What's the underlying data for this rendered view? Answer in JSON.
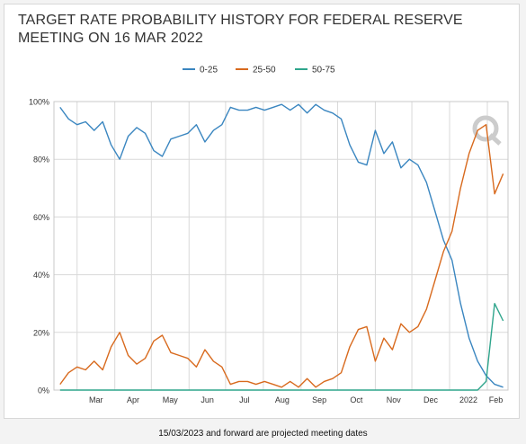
{
  "chart_data": {
    "type": "line",
    "title": "TARGET RATE PROBABILITY HISTORY FOR FEDERAL RESERVE MEETING ON 16 MAR 2022",
    "xlabel": "",
    "ylabel": "",
    "y_ticks": [
      "0%",
      "20%",
      "40%",
      "60%",
      "80%",
      "100%"
    ],
    "ylim": [
      0,
      100
    ],
    "x_ticks": [
      "Mar",
      "Apr",
      "May",
      "Jun",
      "Jul",
      "Aug",
      "Sep",
      "Oct",
      "Nov",
      "Dec",
      "2022",
      "Feb"
    ],
    "legend_position": "top-center",
    "grid": true,
    "x": [
      "2021-02-15",
      "2021-02-22",
      "2021-03-01",
      "2021-03-08",
      "2021-03-15",
      "2021-03-22",
      "2021-03-29",
      "2021-04-05",
      "2021-04-12",
      "2021-04-19",
      "2021-04-26",
      "2021-05-03",
      "2021-05-10",
      "2021-05-17",
      "2021-05-24",
      "2021-05-31",
      "2021-06-07",
      "2021-06-14",
      "2021-06-21",
      "2021-06-28",
      "2021-07-05",
      "2021-07-12",
      "2021-07-19",
      "2021-07-26",
      "2021-08-02",
      "2021-08-09",
      "2021-08-16",
      "2021-08-23",
      "2021-08-30",
      "2021-09-06",
      "2021-09-13",
      "2021-09-20",
      "2021-09-27",
      "2021-10-04",
      "2021-10-11",
      "2021-10-18",
      "2021-10-25",
      "2021-11-01",
      "2021-11-08",
      "2021-11-15",
      "2021-11-22",
      "2021-11-29",
      "2021-12-06",
      "2021-12-13",
      "2021-12-20",
      "2021-12-27",
      "2022-01-03",
      "2022-01-10",
      "2022-01-17",
      "2022-01-24",
      "2022-01-31",
      "2022-02-07",
      "2022-02-14"
    ],
    "series": [
      {
        "name": "0-25",
        "color": "#3a86c0",
        "values": [
          98,
          94,
          92,
          93,
          90,
          93,
          85,
          80,
          88,
          91,
          89,
          83,
          81,
          87,
          88,
          89,
          92,
          86,
          90,
          92,
          98,
          97,
          97,
          98,
          97,
          98,
          99,
          97,
          99,
          96,
          99,
          97,
          96,
          94,
          85,
          79,
          78,
          90,
          82,
          86,
          77,
          80,
          78,
          72,
          62,
          52,
          45,
          30,
          18,
          10,
          5,
          2,
          1
        ]
      },
      {
        "name": "25-50",
        "color": "#d86a1e",
        "values": [
          2,
          6,
          8,
          7,
          10,
          7,
          15,
          20,
          12,
          9,
          11,
          17,
          19,
          13,
          12,
          11,
          8,
          14,
          10,
          8,
          2,
          3,
          3,
          2,
          3,
          2,
          1,
          3,
          1,
          4,
          1,
          3,
          4,
          6,
          15,
          21,
          22,
          10,
          18,
          14,
          23,
          20,
          22,
          28,
          38,
          48,
          55,
          70,
          82,
          90,
          92,
          68,
          75
        ]
      },
      {
        "name": "50-75",
        "color": "#2fa58c",
        "values": [
          0,
          0,
          0,
          0,
          0,
          0,
          0,
          0,
          0,
          0,
          0,
          0,
          0,
          0,
          0,
          0,
          0,
          0,
          0,
          0,
          0,
          0,
          0,
          0,
          0,
          0,
          0,
          0,
          0,
          0,
          0,
          0,
          0,
          0,
          0,
          0,
          0,
          0,
          0,
          0,
          0,
          0,
          0,
          0,
          0,
          0,
          0,
          0,
          0,
          0,
          3,
          30,
          24
        ]
      }
    ]
  },
  "legend": {
    "items": [
      {
        "label": "0-25",
        "color": "#3a86c0"
      },
      {
        "label": "25-50",
        "color": "#d86a1e"
      },
      {
        "label": "50-75",
        "color": "#2fa58c"
      }
    ]
  },
  "footer": {
    "note": "15/03/2023 and forward are projected meeting dates"
  },
  "colors": {
    "grid": "#d9d9d9",
    "axis_text": "#333333",
    "watermark": "#cccccc"
  }
}
